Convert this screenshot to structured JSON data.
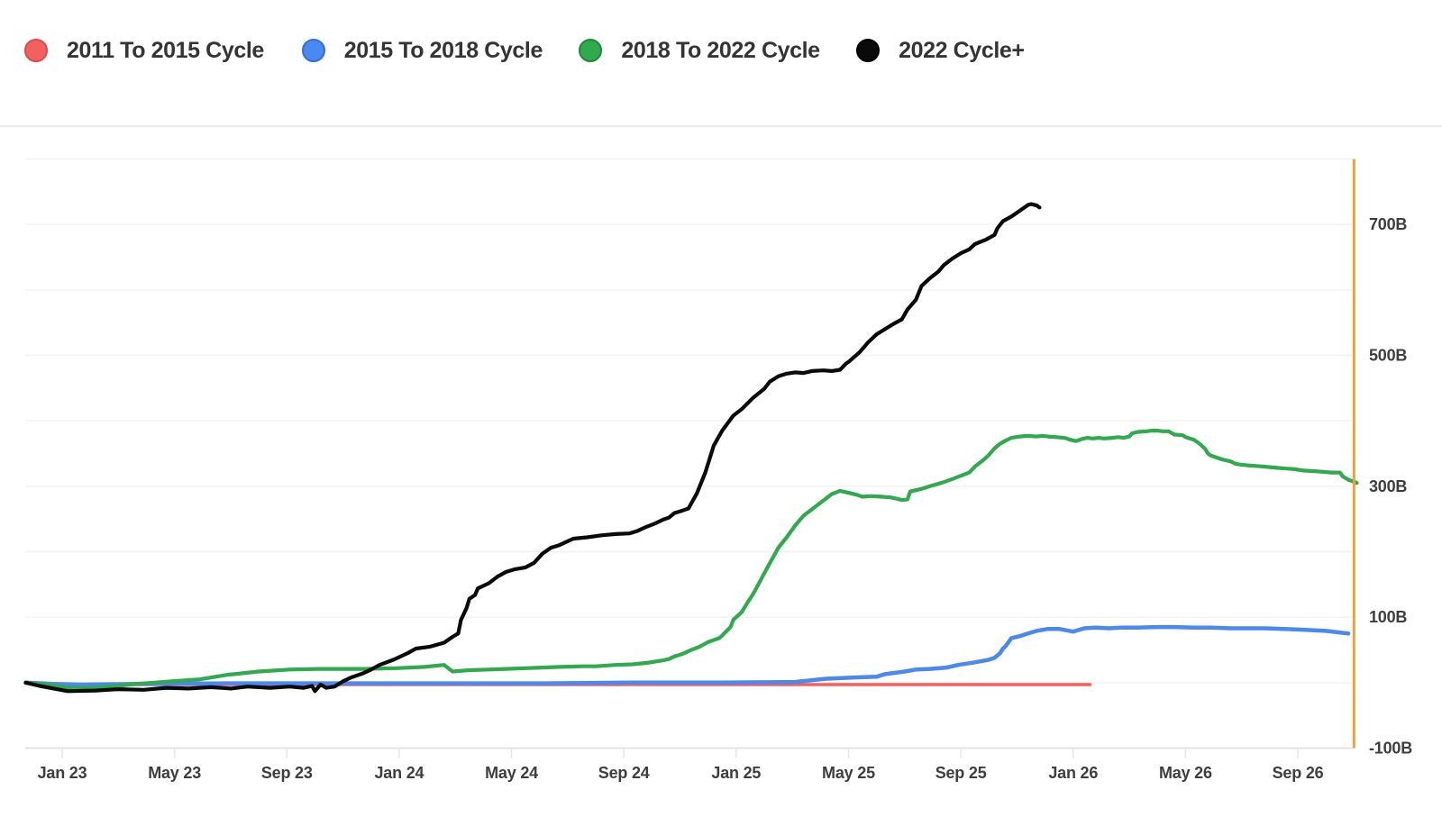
{
  "legend": {
    "items": [
      {
        "label": "2011 To 2015 Cycle",
        "color": "#f4605f",
        "border": "#e04848"
      },
      {
        "label": "2015 To 2018 Cycle",
        "color": "#4a88f2",
        "border": "#2f6fdd"
      },
      {
        "label": "2018 To 2022 Cycle",
        "color": "#2faa4c",
        "border": "#1e8a39"
      },
      {
        "label": "2022 Cycle+",
        "color": "#0a0a0a",
        "border": "#000000"
      }
    ]
  },
  "chart_data": {
    "type": "line",
    "title": "",
    "x_unit": "months since Jan 2023",
    "y_unit": "billions (B)",
    "xlim": [
      -1.4,
      46.3
    ],
    "ylim": [
      -100,
      800
    ],
    "grid": "horizontal every 100B",
    "legend_position": "top",
    "x_tick_months": [
      0,
      4,
      8,
      12,
      16,
      20,
      24,
      28,
      32,
      36,
      40,
      44
    ],
    "x_tick_labels": [
      "Jan 23",
      "May 23",
      "Sep 23",
      "Jan 24",
      "May 24",
      "Sep 24",
      "Jan 25",
      "May 25",
      "Sep 25",
      "Jan 26",
      "May 26",
      "Sep 26"
    ],
    "y_tick_values": [
      700,
      500,
      300,
      100,
      -100
    ],
    "y_tick_labels": [
      "700B",
      "500B",
      "300B",
      "100B",
      "-100B"
    ],
    "marker_line": {
      "name": "current-date-marker",
      "x_month": 46,
      "color": "#f69d3c"
    },
    "series": [
      {
        "name": "2011 To 2015 Cycle",
        "color": "#f4605f",
        "width": 3.6,
        "points": [
          [
            -1.3,
            -1
          ],
          [
            0.2,
            -4
          ],
          [
            1,
            -4
          ],
          [
            2.6,
            -3
          ],
          [
            5.8,
            -3
          ],
          [
            10.7,
            -3
          ],
          [
            17.1,
            -3
          ],
          [
            23.5,
            -3
          ],
          [
            26.7,
            -3
          ],
          [
            30,
            -3
          ],
          [
            33.2,
            -3
          ],
          [
            35.8,
            -3
          ],
          [
            36.6,
            -3
          ]
        ]
      },
      {
        "name": "2015 To 2018 Cycle",
        "color": "#4a88f2",
        "width": 4.5,
        "points": [
          [
            -1.3,
            0
          ],
          [
            -0.3,
            -2
          ],
          [
            0.7,
            -3
          ],
          [
            2.6,
            -2
          ],
          [
            5.8,
            -1
          ],
          [
            10.7,
            -1
          ],
          [
            17.1,
            -1
          ],
          [
            20.3,
            0
          ],
          [
            23.5,
            0
          ],
          [
            26.1,
            1
          ],
          [
            27.2,
            6
          ],
          [
            28.3,
            8
          ],
          [
            29,
            9
          ],
          [
            29.3,
            13
          ],
          [
            30,
            17
          ],
          [
            30.4,
            20
          ],
          [
            30.9,
            21
          ],
          [
            31.5,
            23
          ],
          [
            31.9,
            27
          ],
          [
            32.5,
            31
          ],
          [
            33,
            35
          ],
          [
            33.2,
            38
          ],
          [
            33.4,
            45
          ],
          [
            33.5,
            52
          ],
          [
            33.6,
            56
          ],
          [
            33.8,
            68
          ],
          [
            34.1,
            71
          ],
          [
            34.3,
            74
          ],
          [
            34.7,
            79
          ],
          [
            35.1,
            82
          ],
          [
            35.5,
            82
          ],
          [
            36,
            78
          ],
          [
            36.4,
            83
          ],
          [
            36.8,
            84
          ],
          [
            37.3,
            83
          ],
          [
            37.7,
            84
          ],
          [
            38.3,
            84
          ],
          [
            39,
            85
          ],
          [
            39.6,
            85
          ],
          [
            40.3,
            84
          ],
          [
            40.9,
            84
          ],
          [
            41.6,
            83
          ],
          [
            42.2,
            83
          ],
          [
            42.8,
            83
          ],
          [
            43.5,
            82
          ],
          [
            44.1,
            81
          ],
          [
            44.6,
            80
          ],
          [
            45,
            79
          ],
          [
            45.4,
            77
          ],
          [
            45.8,
            75
          ]
        ]
      },
      {
        "name": "2018 To 2022 Cycle",
        "color": "#2faa4c",
        "width": 4.2,
        "points": [
          [
            -1.3,
            0
          ],
          [
            -0.6,
            -3
          ],
          [
            0.2,
            -8
          ],
          [
            1,
            -8
          ],
          [
            2,
            -5
          ],
          [
            2.6,
            -2
          ],
          [
            3.3,
            0
          ],
          [
            3.9,
            2
          ],
          [
            4.9,
            5
          ],
          [
            5.9,
            12
          ],
          [
            7,
            17
          ],
          [
            8.1,
            20
          ],
          [
            9.1,
            21
          ],
          [
            10.7,
            21
          ],
          [
            11.9,
            22
          ],
          [
            12.9,
            24
          ],
          [
            13.6,
            27
          ],
          [
            13.9,
            17
          ],
          [
            14.5,
            19
          ],
          [
            15.2,
            20
          ],
          [
            15.8,
            21
          ],
          [
            16.5,
            22
          ],
          [
            17.1,
            23
          ],
          [
            17.7,
            24
          ],
          [
            18.5,
            25
          ],
          [
            19,
            25
          ],
          [
            19.7,
            27
          ],
          [
            20.3,
            28
          ],
          [
            20.8,
            30
          ],
          [
            21.1,
            32
          ],
          [
            21.4,
            34
          ],
          [
            21.6,
            36
          ],
          [
            21.8,
            40
          ],
          [
            22.1,
            44
          ],
          [
            22.4,
            50
          ],
          [
            22.7,
            55
          ],
          [
            23,
            62
          ],
          [
            23.4,
            68
          ],
          [
            23.5,
            72
          ],
          [
            23.8,
            85
          ],
          [
            23.9,
            96
          ],
          [
            24.2,
            108
          ],
          [
            24.4,
            122
          ],
          [
            24.6,
            135
          ],
          [
            24.8,
            151
          ],
          [
            25.1,
            175
          ],
          [
            25.5,
            206
          ],
          [
            25.8,
            222
          ],
          [
            26.1,
            240
          ],
          [
            26.4,
            255
          ],
          [
            26.7,
            265
          ],
          [
            27.1,
            278
          ],
          [
            27.4,
            288
          ],
          [
            27.7,
            293
          ],
          [
            28,
            290
          ],
          [
            28.3,
            287
          ],
          [
            28.5,
            284
          ],
          [
            28.8,
            285
          ],
          [
            29.2,
            284
          ],
          [
            29.5,
            283
          ],
          [
            29.7,
            281
          ],
          [
            29.9,
            279
          ],
          [
            30.1,
            280
          ],
          [
            30.2,
            292
          ],
          [
            30.4,
            294
          ],
          [
            30.6,
            296
          ],
          [
            30.9,
            300
          ],
          [
            31.3,
            305
          ],
          [
            31.7,
            311
          ],
          [
            32,
            316
          ],
          [
            32.3,
            321
          ],
          [
            32.5,
            330
          ],
          [
            32.8,
            340
          ],
          [
            33,
            348
          ],
          [
            33.2,
            358
          ],
          [
            33.4,
            365
          ],
          [
            33.6,
            370
          ],
          [
            33.8,
            374
          ],
          [
            34.1,
            376
          ],
          [
            34.4,
            377
          ],
          [
            34.7,
            376
          ],
          [
            34.9,
            377
          ],
          [
            35.1,
            376
          ],
          [
            35.4,
            375
          ],
          [
            35.7,
            374
          ],
          [
            35.9,
            371
          ],
          [
            36.1,
            369
          ],
          [
            36.3,
            372
          ],
          [
            36.5,
            374
          ],
          [
            36.7,
            373
          ],
          [
            36.9,
            374
          ],
          [
            37.1,
            373
          ],
          [
            37.4,
            374
          ],
          [
            37.6,
            375
          ],
          [
            37.8,
            374
          ],
          [
            38,
            376
          ],
          [
            38.1,
            381
          ],
          [
            38.3,
            383
          ],
          [
            38.6,
            384
          ],
          [
            38.8,
            385
          ],
          [
            39,
            385
          ],
          [
            39.2,
            384
          ],
          [
            39.4,
            384
          ],
          [
            39.6,
            379
          ],
          [
            39.9,
            378
          ],
          [
            40,
            375
          ],
          [
            40.3,
            371
          ],
          [
            40.5,
            365
          ],
          [
            40.7,
            357
          ],
          [
            40.8,
            350
          ],
          [
            40.9,
            347
          ],
          [
            41.1,
            344
          ],
          [
            41.3,
            341
          ],
          [
            41.6,
            338
          ],
          [
            41.8,
            334
          ],
          [
            42,
            333
          ],
          [
            42.2,
            332
          ],
          [
            42.5,
            331
          ],
          [
            42.8,
            330
          ],
          [
            43.3,
            328
          ],
          [
            43.6,
            327
          ],
          [
            43.9,
            326
          ],
          [
            44.2,
            324
          ],
          [
            44.6,
            323
          ],
          [
            44.9,
            322
          ],
          [
            45.2,
            321
          ],
          [
            45.5,
            321
          ],
          [
            45.6,
            315
          ],
          [
            45.8,
            310
          ],
          [
            46,
            307
          ],
          [
            46.1,
            305
          ]
        ]
      },
      {
        "name": "2022 Cycle+",
        "color": "#0a0a0a",
        "width": 4.2,
        "points": [
          [
            -1.3,
            0
          ],
          [
            -0.8,
            -5
          ],
          [
            0.2,
            -13
          ],
          [
            1.2,
            -12
          ],
          [
            2,
            -10
          ],
          [
            2.9,
            -11
          ],
          [
            3.7,
            -8
          ],
          [
            4.5,
            -9
          ],
          [
            5.3,
            -7
          ],
          [
            6,
            -9
          ],
          [
            6.6,
            -6
          ],
          [
            7.4,
            -8
          ],
          [
            8.1,
            -6
          ],
          [
            8.6,
            -8
          ],
          [
            8.9,
            -5
          ],
          [
            9,
            -13
          ],
          [
            9.2,
            -3
          ],
          [
            9.4,
            -8
          ],
          [
            9.7,
            -6
          ],
          [
            10,
            2
          ],
          [
            10.3,
            8
          ],
          [
            10.7,
            14
          ],
          [
            11,
            20
          ],
          [
            11.3,
            27
          ],
          [
            11.8,
            35
          ],
          [
            12.3,
            45
          ],
          [
            12.6,
            52
          ],
          [
            13.1,
            55
          ],
          [
            13.6,
            61
          ],
          [
            13.9,
            70
          ],
          [
            14.1,
            75
          ],
          [
            14.2,
            96
          ],
          [
            14.4,
            114
          ],
          [
            14.5,
            128
          ],
          [
            14.7,
            134
          ],
          [
            14.8,
            144
          ],
          [
            15.2,
            152
          ],
          [
            15.5,
            162
          ],
          [
            15.8,
            169
          ],
          [
            16.1,
            173
          ],
          [
            16.5,
            176
          ],
          [
            16.8,
            183
          ],
          [
            17.1,
            197
          ],
          [
            17.4,
            206
          ],
          [
            17.7,
            210
          ],
          [
            18.2,
            220
          ],
          [
            18.7,
            222
          ],
          [
            19.2,
            225
          ],
          [
            19.7,
            227
          ],
          [
            20.2,
            228
          ],
          [
            20.5,
            232
          ],
          [
            20.8,
            238
          ],
          [
            21.1,
            243
          ],
          [
            21.4,
            249
          ],
          [
            21.6,
            252
          ],
          [
            21.8,
            259
          ],
          [
            22.1,
            263
          ],
          [
            22.3,
            266
          ],
          [
            22.6,
            289
          ],
          [
            22.9,
            321
          ],
          [
            23.2,
            362
          ],
          [
            23.5,
            385
          ],
          [
            23.9,
            408
          ],
          [
            24.2,
            418
          ],
          [
            24.6,
            435
          ],
          [
            25,
            449
          ],
          [
            25.2,
            460
          ],
          [
            25.5,
            468
          ],
          [
            25.8,
            472
          ],
          [
            26.1,
            474
          ],
          [
            26.4,
            473
          ],
          [
            26.7,
            476
          ],
          [
            27.1,
            477
          ],
          [
            27.4,
            476
          ],
          [
            27.7,
            478
          ],
          [
            27.9,
            487
          ],
          [
            28,
            490
          ],
          [
            28.4,
            505
          ],
          [
            28.7,
            520
          ],
          [
            29,
            532
          ],
          [
            29.3,
            540
          ],
          [
            29.6,
            548
          ],
          [
            29.9,
            555
          ],
          [
            30.1,
            570
          ],
          [
            30.4,
            585
          ],
          [
            30.6,
            606
          ],
          [
            30.9,
            618
          ],
          [
            31.2,
            628
          ],
          [
            31.4,
            638
          ],
          [
            31.7,
            648
          ],
          [
            32,
            656
          ],
          [
            32.3,
            662
          ],
          [
            32.5,
            670
          ],
          [
            32.9,
            677
          ],
          [
            33.2,
            684
          ],
          [
            33.3,
            694
          ],
          [
            33.5,
            705
          ],
          [
            33.8,
            712
          ],
          [
            34,
            718
          ],
          [
            34.2,
            724
          ],
          [
            34.4,
            730
          ],
          [
            34.5,
            731
          ],
          [
            34.7,
            729
          ],
          [
            34.8,
            726
          ]
        ]
      }
    ]
  }
}
